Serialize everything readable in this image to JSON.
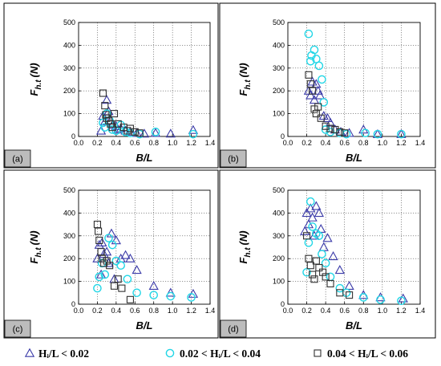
{
  "figure": {
    "legend": {
      "items": [
        {
          "series": "tri",
          "label": "Hᵢ/L < 0.02"
        },
        {
          "series": "circ",
          "label": "0.02 < Hᵢ/L < 0.04"
        },
        {
          "series": "sq",
          "label": "0.04 < Hᵢ/L < 0.06"
        }
      ]
    },
    "colors": {
      "tri": "#3a3aa8",
      "circ": "#22d6e6",
      "sq": "#303030",
      "label_box": "#bcbcbc"
    }
  },
  "chart_data": [
    {
      "panel": "(a)",
      "type": "scatter",
      "xlabel": "B/L",
      "ylabel": "F h.t (N)",
      "xlim": [
        0.0,
        1.4
      ],
      "ylim": [
        0,
        500
      ],
      "xticks": [
        "0.0",
        "0.2",
        "0.4",
        "0.6",
        "0.8",
        "1.0",
        "1.2",
        "1.4"
      ],
      "yticks": [
        "0",
        "100",
        "200",
        "300",
        "400",
        "500"
      ],
      "grid": true,
      "series": [
        {
          "marker": "tri",
          "points": [
            [
              0.24,
              25
            ],
            [
              0.26,
              90
            ],
            [
              0.28,
              65
            ],
            [
              0.3,
              160
            ],
            [
              0.32,
              110
            ],
            [
              0.34,
              70
            ],
            [
              0.36,
              50
            ],
            [
              0.4,
              45
            ],
            [
              0.42,
              30
            ],
            [
              0.45,
              35
            ],
            [
              0.5,
              25
            ],
            [
              0.55,
              20
            ],
            [
              0.62,
              15
            ],
            [
              0.7,
              12
            ],
            [
              0.82,
              15
            ],
            [
              0.98,
              12
            ],
            [
              1.22,
              28
            ]
          ]
        },
        {
          "marker": "circ",
          "points": [
            [
              0.26,
              60
            ],
            [
              0.28,
              40
            ],
            [
              0.3,
              100
            ],
            [
              0.33,
              70
            ],
            [
              0.36,
              30
            ],
            [
              0.4,
              25
            ],
            [
              0.45,
              50
            ],
            [
              0.5,
              20
            ],
            [
              0.55,
              15
            ],
            [
              0.65,
              10
            ],
            [
              0.82,
              20
            ],
            [
              1.22,
              10
            ]
          ]
        },
        {
          "marker": "sq",
          "points": [
            [
              0.26,
              190
            ],
            [
              0.28,
              135
            ],
            [
              0.29,
              95
            ],
            [
              0.3,
              80
            ],
            [
              0.32,
              70
            ],
            [
              0.34,
              55
            ],
            [
              0.36,
              40
            ],
            [
              0.38,
              100
            ],
            [
              0.42,
              55
            ],
            [
              0.48,
              40
            ],
            [
              0.52,
              25
            ],
            [
              0.55,
              35
            ],
            [
              0.6,
              20
            ],
            [
              0.65,
              15
            ]
          ]
        }
      ]
    },
    {
      "panel": "(b)",
      "type": "scatter",
      "xlabel": "B/L",
      "ylabel": "F h.t (N)",
      "xlim": [
        0.0,
        1.4
      ],
      "ylim": [
        0,
        500
      ],
      "xticks": [
        "0.0",
        "0.2",
        "0.4",
        "0.6",
        "0.8",
        "1.0",
        "1.2",
        "1.4"
      ],
      "yticks": [
        "0",
        "100",
        "200",
        "300",
        "400",
        "500"
      ],
      "grid": true,
      "series": [
        {
          "marker": "tri",
          "points": [
            [
              0.22,
              200
            ],
            [
              0.24,
              180
            ],
            [
              0.26,
              240
            ],
            [
              0.28,
              160
            ],
            [
              0.3,
              230
            ],
            [
              0.32,
              200
            ],
            [
              0.34,
              180
            ],
            [
              0.38,
              90
            ],
            [
              0.42,
              80
            ],
            [
              0.45,
              60
            ],
            [
              0.5,
              30
            ],
            [
              0.56,
              20
            ],
            [
              0.65,
              15
            ],
            [
              0.8,
              30
            ],
            [
              0.95,
              10
            ],
            [
              1.2,
              10
            ]
          ]
        },
        {
          "marker": "circ",
          "points": [
            [
              0.22,
              450
            ],
            [
              0.24,
              330
            ],
            [
              0.25,
              355
            ],
            [
              0.28,
              380
            ],
            [
              0.3,
              340
            ],
            [
              0.33,
              310
            ],
            [
              0.36,
              250
            ],
            [
              0.38,
              150
            ],
            [
              0.4,
              30
            ],
            [
              0.45,
              20
            ],
            [
              0.55,
              15
            ],
            [
              0.62,
              10
            ],
            [
              0.82,
              15
            ],
            [
              0.95,
              10
            ],
            [
              1.2,
              10
            ]
          ]
        },
        {
          "marker": "sq",
          "points": [
            [
              0.22,
              270
            ],
            [
              0.24,
              230
            ],
            [
              0.26,
              200
            ],
            [
              0.28,
              120
            ],
            [
              0.3,
              100
            ],
            [
              0.32,
              130
            ],
            [
              0.35,
              80
            ],
            [
              0.4,
              45
            ],
            [
              0.45,
              35
            ],
            [
              0.5,
              30
            ],
            [
              0.55,
              20
            ],
            [
              0.6,
              15
            ]
          ]
        }
      ]
    },
    {
      "panel": "(c)",
      "type": "scatter",
      "xlabel": "B/L",
      "ylabel": "F h.t (N)",
      "xlim": [
        0.0,
        1.4
      ],
      "ylim": [
        0,
        500
      ],
      "xticks": [
        "0.0",
        "0.2",
        "0.4",
        "0.6",
        "0.8",
        "1.0",
        "1.2",
        "1.4"
      ],
      "yticks": [
        "0",
        "100",
        "200",
        "300",
        "400",
        "500"
      ],
      "grid": true,
      "series": [
        {
          "marker": "tri",
          "points": [
            [
              0.2,
              200
            ],
            [
              0.22,
              260
            ],
            [
              0.24,
              130
            ],
            [
              0.25,
              270
            ],
            [
              0.27,
              220
            ],
            [
              0.3,
              230
            ],
            [
              0.32,
              180
            ],
            [
              0.35,
              310
            ],
            [
              0.38,
              110
            ],
            [
              0.4,
              280
            ],
            [
              0.45,
              200
            ],
            [
              0.5,
              215
            ],
            [
              0.55,
              200
            ],
            [
              0.62,
              150
            ],
            [
              0.8,
              80
            ],
            [
              0.98,
              50
            ],
            [
              1.22,
              45
            ]
          ]
        },
        {
          "marker": "circ",
          "points": [
            [
              0.2,
              70
            ],
            [
              0.22,
              120
            ],
            [
              0.25,
              180
            ],
            [
              0.28,
              130
            ],
            [
              0.32,
              290
            ],
            [
              0.36,
              260
            ],
            [
              0.4,
              190
            ],
            [
              0.45,
              170
            ],
            [
              0.52,
              110
            ],
            [
              0.62,
              50
            ],
            [
              0.8,
              40
            ],
            [
              0.98,
              35
            ],
            [
              1.2,
              30
            ]
          ]
        },
        {
          "marker": "sq",
          "points": [
            [
              0.2,
              350
            ],
            [
              0.21,
              320
            ],
            [
              0.22,
              280
            ],
            [
              0.24,
              230
            ],
            [
              0.25,
              200
            ],
            [
              0.27,
              180
            ],
            [
              0.3,
              190
            ],
            [
              0.33,
              170
            ],
            [
              0.38,
              80
            ],
            [
              0.42,
              110
            ],
            [
              0.46,
              70
            ],
            [
              0.55,
              20
            ]
          ]
        }
      ]
    },
    {
      "panel": "(d)",
      "type": "scatter",
      "xlabel": "B/L",
      "ylabel": "F h.t (N)",
      "xlim": [
        0.0,
        1.4
      ],
      "ylim": [
        0,
        500
      ],
      "xticks": [
        "0.0",
        "0.2",
        "0.4",
        "0.6",
        "0.8",
        "1.0",
        "1.2",
        "1.4"
      ],
      "yticks": [
        "0",
        "100",
        "200",
        "300",
        "400",
        "500"
      ],
      "grid": true,
      "series": [
        {
          "marker": "tri",
          "points": [
            [
              0.18,
              320
            ],
            [
              0.2,
              400
            ],
            [
              0.22,
              350
            ],
            [
              0.24,
              420
            ],
            [
              0.26,
              380
            ],
            [
              0.28,
              300
            ],
            [
              0.3,
              430
            ],
            [
              0.33,
              400
            ],
            [
              0.35,
              330
            ],
            [
              0.38,
              250
            ],
            [
              0.42,
              290
            ],
            [
              0.48,
              210
            ],
            [
              0.55,
              150
            ],
            [
              0.65,
              80
            ],
            [
              0.8,
              40
            ],
            [
              0.98,
              30
            ],
            [
              1.22,
              25
            ]
          ]
        },
        {
          "marker": "circ",
          "points": [
            [
              0.2,
              140
            ],
            [
              0.22,
              270
            ],
            [
              0.24,
              450
            ],
            [
              0.26,
              340
            ],
            [
              0.3,
              310
            ],
            [
              0.33,
              300
            ],
            [
              0.36,
              220
            ],
            [
              0.4,
              180
            ],
            [
              0.45,
              120
            ],
            [
              0.55,
              70
            ],
            [
              0.62,
              50
            ],
            [
              0.8,
              30
            ],
            [
              0.98,
              20
            ],
            [
              1.2,
              15
            ]
          ]
        },
        {
          "marker": "sq",
          "points": [
            [
              0.2,
              300
            ],
            [
              0.22,
              200
            ],
            [
              0.24,
              170
            ],
            [
              0.26,
              130
            ],
            [
              0.28,
              110
            ],
            [
              0.3,
              190
            ],
            [
              0.33,
              160
            ],
            [
              0.37,
              140
            ],
            [
              0.4,
              120
            ],
            [
              0.45,
              90
            ],
            [
              0.55,
              50
            ],
            [
              0.65,
              40
            ]
          ]
        }
      ]
    }
  ]
}
